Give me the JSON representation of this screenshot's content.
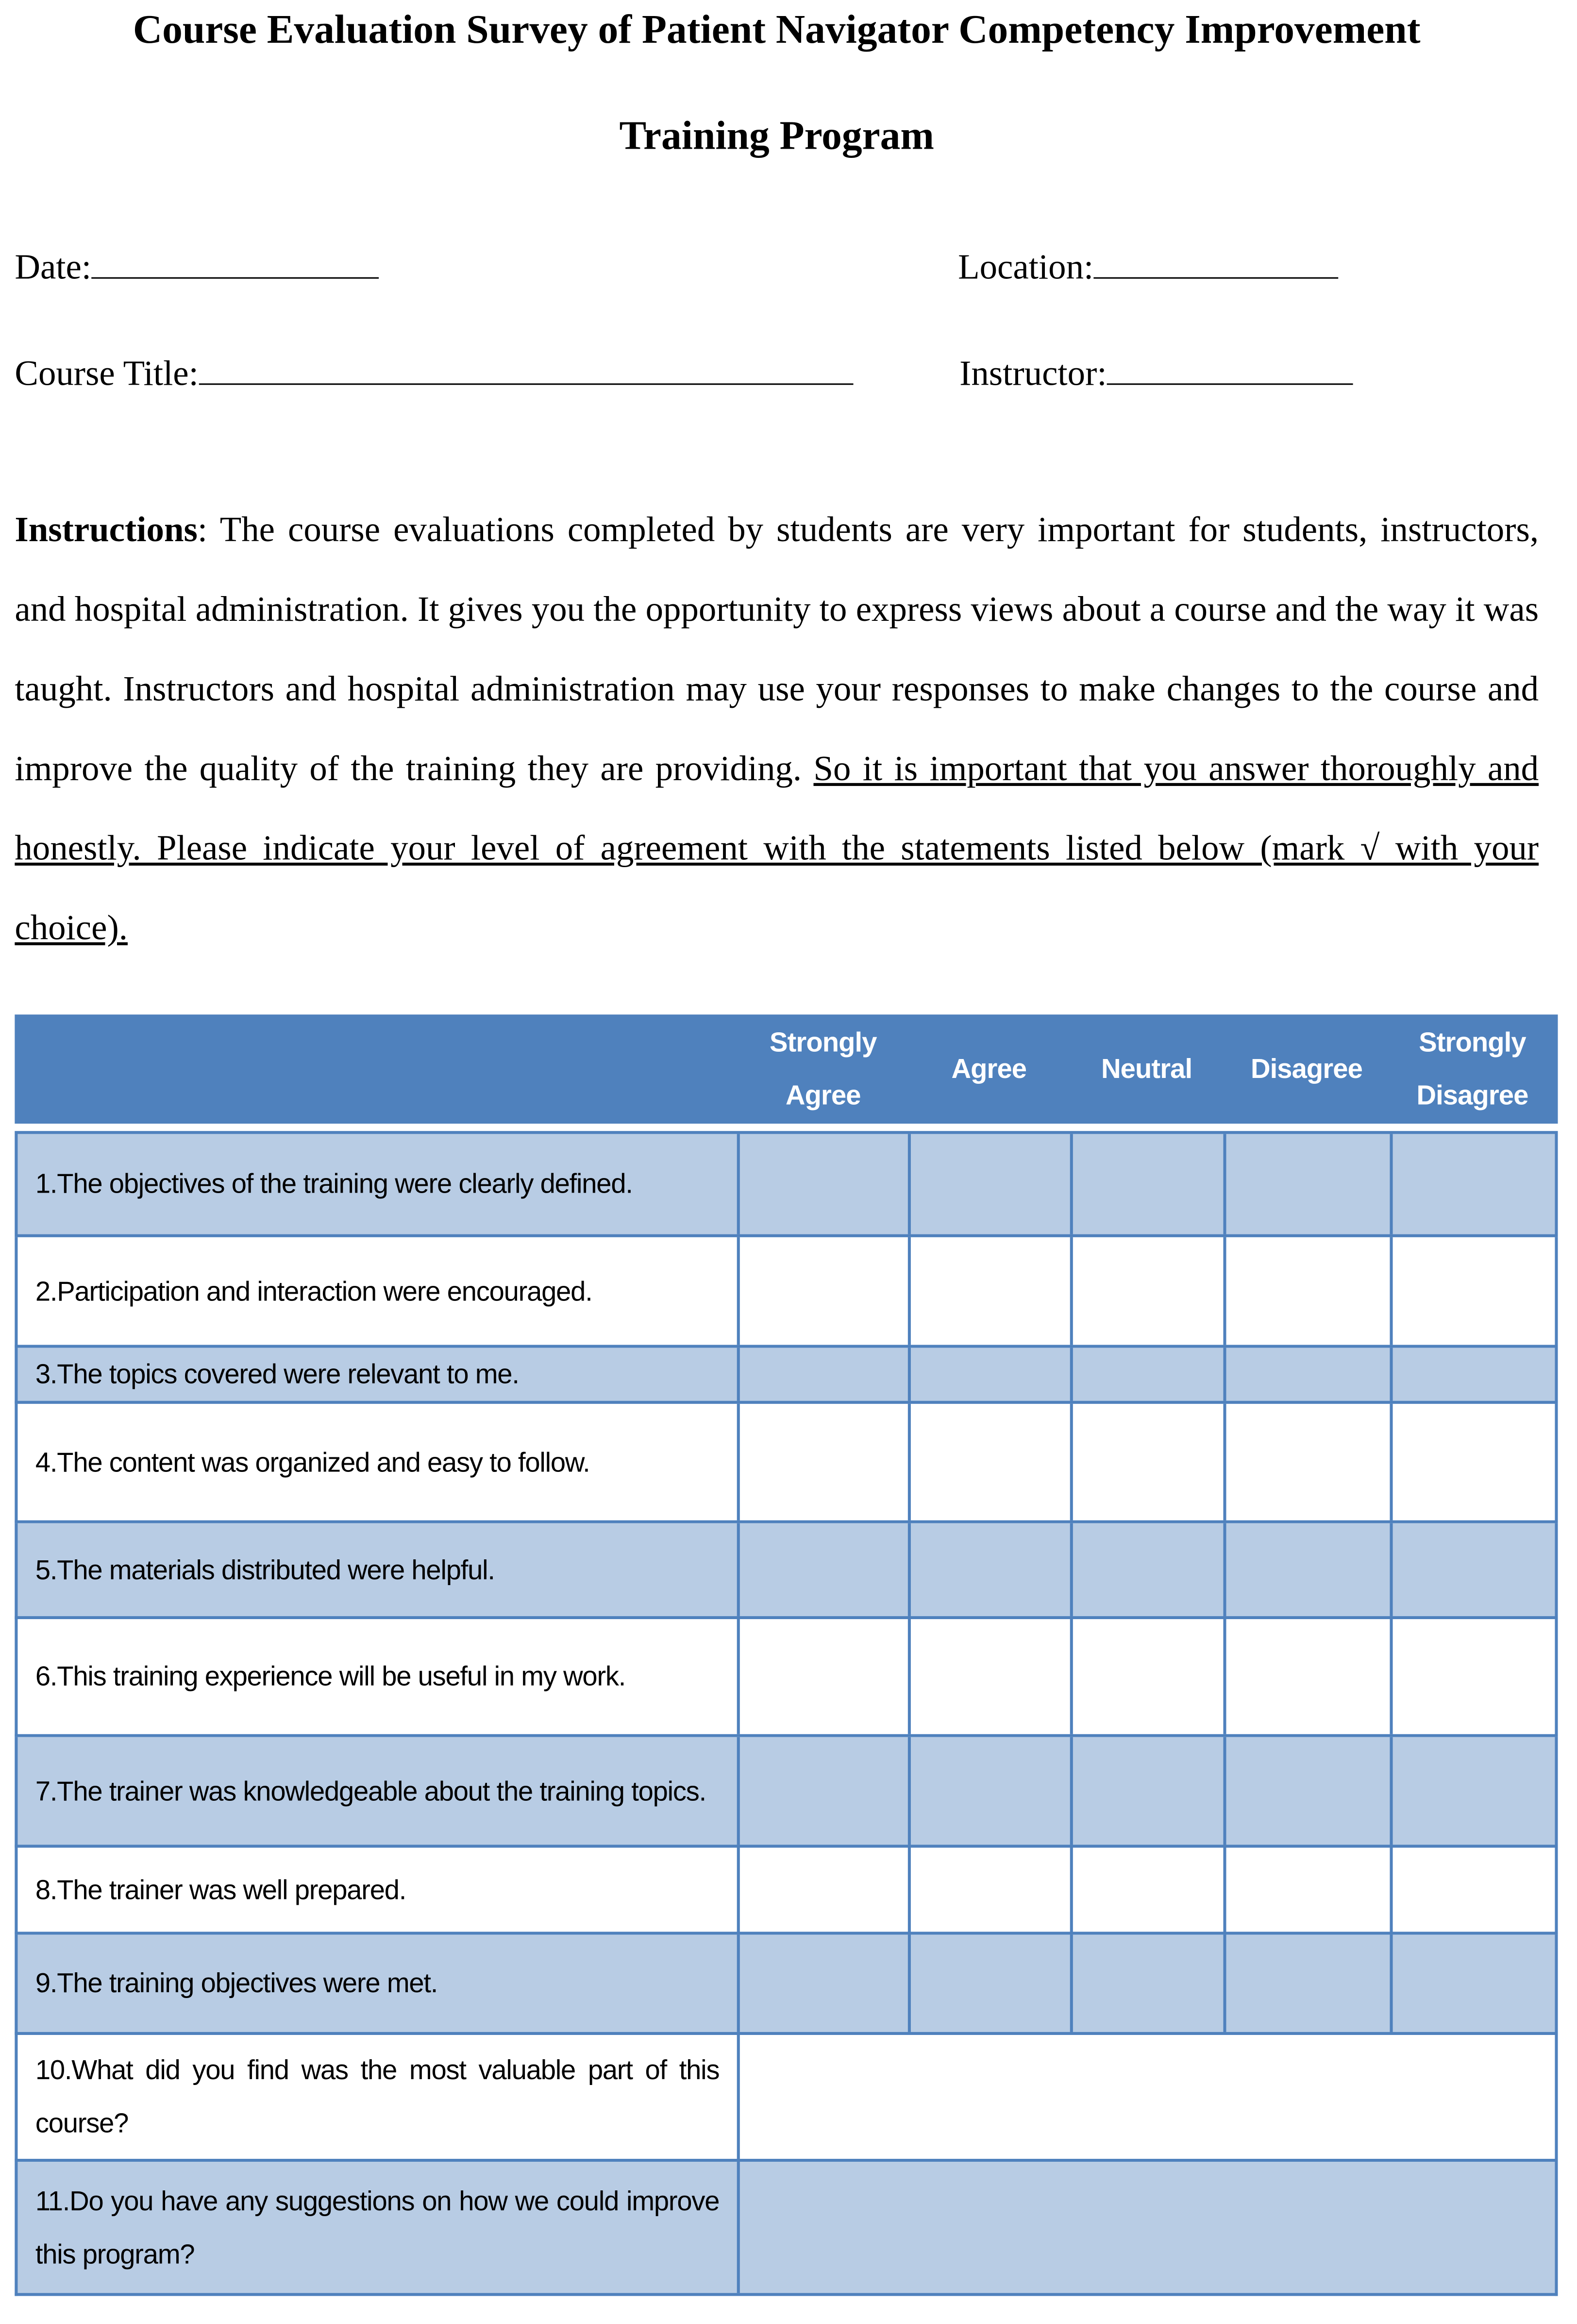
{
  "title": {
    "line1": "Course Evaluation Survey of Patient Navigator Competency Improvement",
    "line2": "Training Program"
  },
  "fields": {
    "date": "Date:",
    "location": "Location:",
    "course_title": "Course Title:",
    "instructor": "Instructor:"
  },
  "instructions": {
    "label": "Instructions",
    "text": ": The course evaluations completed by students are very important for students, instructors, and hospital administration. It gives you the opportunity to express views about a course and the way it was taught. Instructors and hospital administration may use your responses to make changes to the course and improve the quality of the training they are providing. ",
    "underlined": "So it is important that you answer thoroughly and honestly. Please indicate your level of agreement with the statements listed below (mark √ with your choice)."
  },
  "table": {
    "header_color": "#4F81BD",
    "shade_color": "#B8CCE4",
    "columns": [
      "Strongly Agree",
      "Agree",
      "Neutral",
      "Disagree",
      "Strongly Disagree"
    ],
    "rows": [
      "1.The objectives of the training were clearly defined.",
      "2.Participation and interaction were encouraged.",
      "3.The topics covered were relevant to me.",
      "4.The content was organized and easy to follow.",
      "5.The materials distributed were helpful.",
      "6.This training experience will be useful in my work.",
      "7.The trainer was knowledgeable about the training topics.",
      "8.The trainer was well prepared.",
      "9.The training objectives were met.",
      "10.What did you find was the most valuable part of this course?",
      "11.Do you have any suggestions on how we could improve this program?"
    ]
  }
}
